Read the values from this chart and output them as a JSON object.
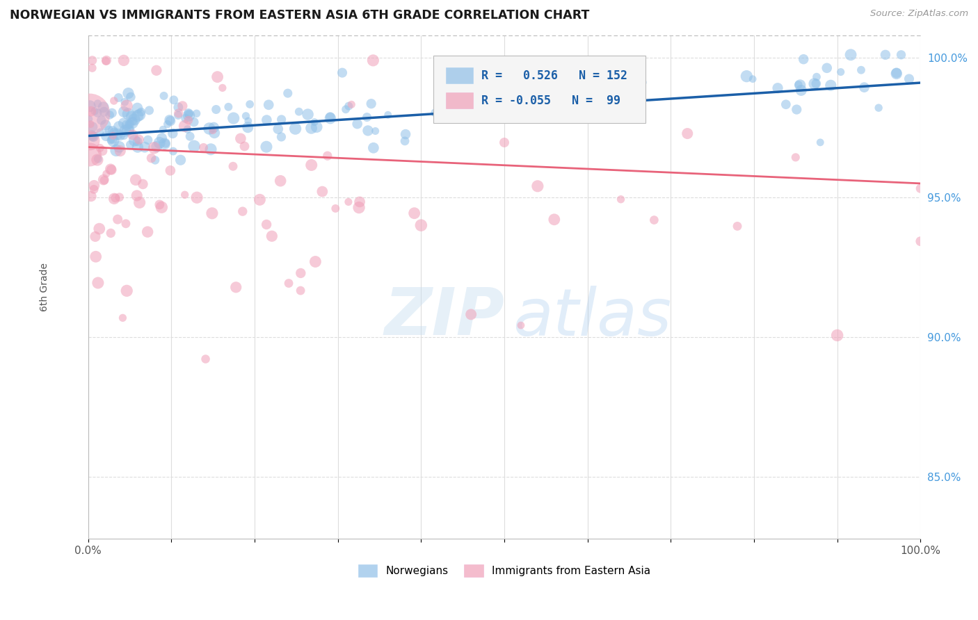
{
  "title": "NORWEGIAN VS IMMIGRANTS FROM EASTERN ASIA 6TH GRADE CORRELATION CHART",
  "source": "Source: ZipAtlas.com",
  "ylabel": "6th Grade",
  "xlim": [
    0.0,
    1.0
  ],
  "ylim": [
    0.828,
    1.008
  ],
  "yticks": [
    0.85,
    0.9,
    0.95,
    1.0
  ],
  "ytick_labels": [
    "85.0%",
    "90.0%",
    "95.0%",
    "100.0%"
  ],
  "norwegian_color": "#90C0E8",
  "immigrant_color": "#F0A0B8",
  "trend_norwegian_color": "#1B5FA8",
  "trend_immigrant_color": "#E8637A",
  "r_norwegian": 0.526,
  "n_norwegian": 152,
  "r_immigrant": -0.055,
  "n_immigrant": 99,
  "background_color": "#FFFFFF",
  "grid_color": "#DDDDDD",
  "watermark_zip": "ZIP",
  "watermark_atlas": "atlas"
}
